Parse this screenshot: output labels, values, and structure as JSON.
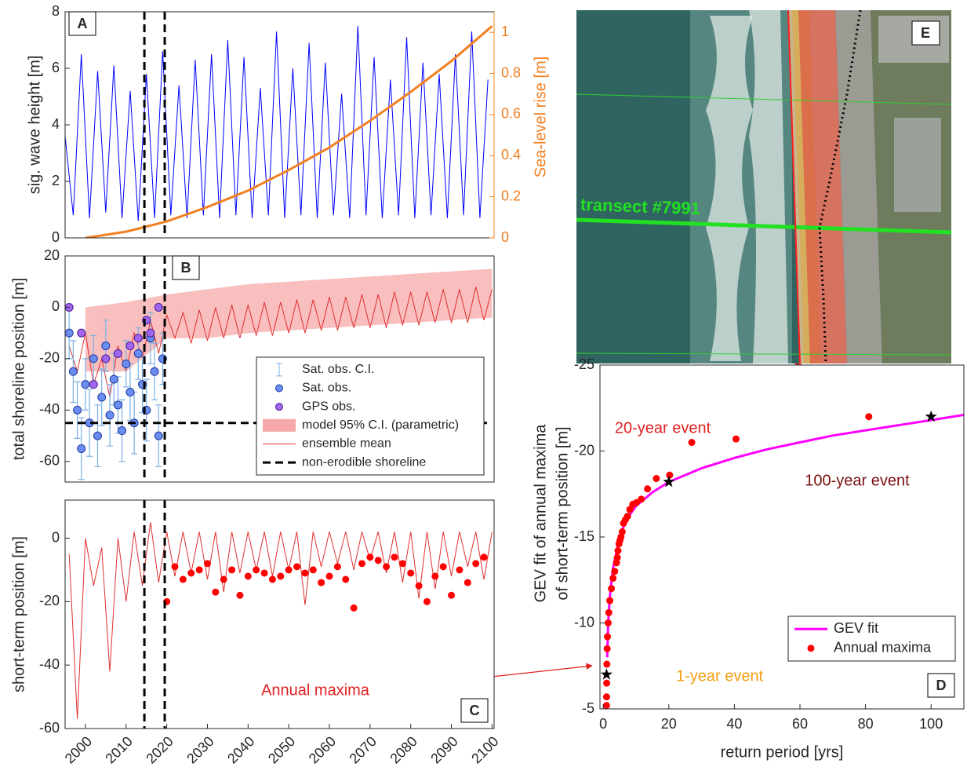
{
  "chart_data": [
    {
      "type": "line",
      "label": "A",
      "ylabel": "sig. wave height [m]",
      "y2label": "Sea-level rise [m]",
      "xlim": [
        1995,
        2100.5
      ],
      "ylim": [
        0,
        8
      ],
      "yticks": [
        0,
        2,
        4,
        6,
        8
      ],
      "y2lim": [
        0,
        1.1
      ],
      "y2ticks": [
        0,
        0.2,
        0.4,
        0.6,
        0.8,
        1
      ],
      "vlines": [
        2014.5,
        2019.5
      ],
      "series": [
        {
          "color": "#0000ff",
          "x": [
            1995,
            1997,
            1999,
            2001,
            2003,
            2005,
            2007,
            2009,
            2011,
            2013,
            2015,
            2017,
            2019,
            2021,
            2023,
            2025,
            2027,
            2029,
            2031,
            2033,
            2035,
            2037,
            2039,
            2041,
            2043,
            2045,
            2047,
            2049,
            2051,
            2053,
            2055,
            2057,
            2059,
            2061,
            2063,
            2065,
            2067,
            2069,
            2071,
            2073,
            2075,
            2077,
            2079,
            2081,
            2083,
            2085,
            2087,
            2089,
            2091,
            2093,
            2095,
            2097,
            2099
          ],
          "values": [
            3.6,
            0.8,
            6.5,
            0.7,
            5.9,
            0.9,
            6.1,
            0.7,
            5.2,
            0.6,
            5.8,
            0.7,
            6.6,
            0.8,
            5.4,
            0.7,
            6.3,
            0.8,
            6.5,
            0.7,
            7.0,
            0.8,
            6.4,
            0.7,
            5.3,
            0.8,
            7.3,
            0.7,
            6.0,
            0.8,
            6.9,
            0.7,
            6.2,
            0.8,
            5.1,
            0.7,
            7.5,
            0.8,
            6.4,
            0.7,
            5.6,
            0.8,
            7.1,
            0.7,
            6.2,
            0.8,
            5.8,
            0.7,
            6.5,
            0.8,
            7.3,
            0.7,
            5.6
          ]
        },
        {
          "color": "#f28021",
          "axis": "y2",
          "x": [
            2000,
            2010,
            2020,
            2030,
            2040,
            2050,
            2060,
            2070,
            2080,
            2090,
            2100
          ],
          "values": [
            0,
            0.03,
            0.08,
            0.15,
            0.23,
            0.33,
            0.44,
            0.57,
            0.71,
            0.86,
            1.03
          ]
        }
      ]
    },
    {
      "type": "scatter",
      "label": "B",
      "ylabel": "total shoreline position [m]",
      "xlim": [
        1995,
        2100.5
      ],
      "ylim": [
        -68,
        20
      ],
      "yticks": [
        -60,
        -40,
        -20,
        0,
        20
      ],
      "vlines": [
        2014.5,
        2019.5
      ],
      "legend": "lower right",
      "series": [
        {
          "name": "Sat. obs. C.I.",
          "kind": "errorbar",
          "color": "#7ab0e6",
          "errors": [
            10,
            12,
            11,
            12,
            10,
            13,
            9,
            12,
            11,
            10,
            12,
            10,
            11,
            12,
            9,
            11,
            12,
            10,
            11,
            12,
            10,
            11,
            12,
            10
          ]
        },
        {
          "name": "Sat. obs.",
          "kind": "points",
          "color": "#6b8cf0",
          "edgecolor": "#1f3a9e",
          "x": [
            1996,
            1997,
            1998,
            1999,
            2000,
            2001,
            2002,
            2003,
            2004,
            2005,
            2006,
            2007,
            2008,
            2009,
            2010,
            2011,
            2012,
            2013,
            2014,
            2015,
            2016,
            2017,
            2018,
            2019
          ],
          "values": [
            -10,
            -25,
            -40,
            -55,
            -30,
            -45,
            -20,
            -50,
            -35,
            -15,
            -42,
            -28,
            -38,
            -48,
            -22,
            -33,
            -45,
            -18,
            -30,
            -40,
            -12,
            -25,
            -50,
            -20
          ]
        },
        {
          "name": "GPS obs.",
          "kind": "points",
          "color": "#a066f0",
          "edgecolor": "#4b1d8f",
          "x": [
            1996,
            1999,
            2002,
            2005,
            2008,
            2011,
            2013,
            2015,
            2016,
            2018
          ],
          "values": [
            0,
            -10,
            -30,
            -20,
            -18,
            -15,
            -12,
            -5,
            -10,
            0
          ]
        },
        {
          "name": "model 95% C.I. (parametric)",
          "kind": "band",
          "color": "#f7a8a8",
          "x": [
            2000,
            2010,
            2020,
            2030,
            2040,
            2050,
            2060,
            2070,
            2080,
            2090,
            2100
          ],
          "lower": [
            -25,
            -25,
            -12,
            -12,
            -10,
            -9,
            -8,
            -7,
            -6,
            -5,
            -4
          ],
          "upper": [
            0,
            2,
            5,
            7,
            9,
            10,
            11,
            12,
            13,
            14,
            15
          ]
        },
        {
          "name": "ensemble mean",
          "kind": "line",
          "color": "#e03030",
          "x": [
            1996,
            1998,
            2000,
            2002,
            2004,
            2006,
            2008,
            2010,
            2012,
            2014,
            2016,
            2018,
            2020,
            2022,
            2024,
            2026,
            2028,
            2030,
            2032,
            2034,
            2036,
            2038,
            2040,
            2042,
            2044,
            2046,
            2048,
            2050,
            2052,
            2054,
            2056,
            2058,
            2060,
            2062,
            2064,
            2066,
            2068,
            2070,
            2072,
            2074,
            2076,
            2078,
            2080,
            2082,
            2084,
            2086,
            2088,
            2090,
            2092,
            2094,
            2096,
            2098,
            2100
          ],
          "values": [
            -15,
            -25,
            -10,
            -30,
            -20,
            -35,
            -15,
            -25,
            -10,
            -20,
            -5,
            -18,
            -3,
            -12,
            -2,
            -14,
            -1,
            -13,
            0,
            -12,
            1,
            -12,
            1,
            -11,
            2,
            -11,
            2,
            -10,
            3,
            -10,
            3,
            -9,
            4,
            -9,
            4,
            -8,
            5,
            -8,
            5,
            -8,
            6,
            -7,
            6,
            -7,
            6,
            -6,
            7,
            -6,
            7,
            -6,
            8,
            -5,
            7
          ]
        },
        {
          "name": "non-erodible shoreline",
          "kind": "hline",
          "color": "#000000",
          "value": -45
        }
      ]
    },
    {
      "type": "line",
      "label": "C",
      "ylabel": "short-term position [m]",
      "annotation": "Annual maxima",
      "xlim": [
        1995,
        2100.5
      ],
      "ylim": [
        -60,
        12
      ],
      "yticks": [
        -60,
        -40,
        -20,
        0
      ],
      "xticks": [
        2000,
        2010,
        2020,
        2030,
        2040,
        2050,
        2060,
        2070,
        2080,
        2090,
        2100
      ],
      "vlines": [
        2014.5,
        2019.5
      ],
      "series": [
        {
          "color": "#e03030",
          "x": [
            1996,
            1998,
            2000,
            2002,
            2004,
            2006,
            2008,
            2010,
            2012,
            2014,
            2016,
            2018,
            2020,
            2022,
            2024,
            2026,
            2028,
            2030,
            2032,
            2034,
            2036,
            2038,
            2040,
            2042,
            2044,
            2046,
            2048,
            2050,
            2052,
            2054,
            2056,
            2058,
            2060,
            2062,
            2064,
            2066,
            2068,
            2070,
            2072,
            2074,
            2076,
            2078,
            2080,
            2082,
            2084,
            2086,
            2088,
            2090,
            2092,
            2094,
            2096,
            2098,
            2100
          ],
          "values": [
            -5,
            -57,
            0,
            -15,
            -3,
            -42,
            0,
            -20,
            2,
            -15,
            5,
            -14,
            2,
            -12,
            2,
            -11,
            2,
            -13,
            2,
            -17,
            2,
            -11,
            2,
            -10,
            2,
            -12,
            2,
            -10,
            2,
            -21,
            2,
            -9,
            2,
            -8,
            2,
            -10,
            2,
            -7,
            2,
            -11,
            2,
            -14,
            2,
            -19,
            2,
            -16,
            2,
            -12,
            2,
            -9,
            2,
            -13,
            2
          ]
        },
        {
          "kind": "points",
          "color": "#ff0000",
          "x": [
            2020,
            2022,
            2024,
            2026,
            2028,
            2030,
            2032,
            2034,
            2036,
            2038,
            2040,
            2042,
            2044,
            2046,
            2048,
            2050,
            2052,
            2054,
            2056,
            2058,
            2060,
            2062,
            2064,
            2066,
            2068,
            2070,
            2072,
            2074,
            2076,
            2078,
            2080,
            2082,
            2084,
            2086,
            2088,
            2090,
            2092,
            2094,
            2096,
            2098
          ],
          "values": [
            -20,
            -9,
            -13,
            -11,
            -10,
            -8,
            -17,
            -13,
            -10,
            -18,
            -12,
            -10,
            -11,
            -13,
            -12,
            -10,
            -9,
            -11,
            -10,
            -14,
            -12,
            -9,
            -13,
            -22,
            -8,
            -6,
            -7,
            -9,
            -6,
            -8,
            -11,
            -15,
            -20,
            -12,
            -9,
            -18,
            -10,
            -14,
            -8,
            -6
          ]
        }
      ]
    },
    {
      "type": "scatter",
      "label": "D",
      "xlabel": "return period [yrs]",
      "ylabel": [
        "GEV fit of annual maxima",
        "of short-term position [m]"
      ],
      "xlim": [
        -1,
        110
      ],
      "ylim": [
        -5,
        -25
      ],
      "xticks": [
        0,
        20,
        40,
        60,
        80,
        100
      ],
      "yticks": [
        -5,
        -10,
        -15,
        -20,
        -25
      ],
      "legend": "lower right",
      "series": [
        {
          "name": "GEV fit",
          "kind": "line",
          "color": "#ff00ff",
          "x": [
            1.2,
            1.5,
            2,
            3,
            5,
            7,
            10,
            15,
            20,
            30,
            40,
            50,
            60,
            70,
            80,
            90,
            100,
            110
          ],
          "values": [
            -8,
            -10,
            -11.5,
            -13.2,
            -15,
            -16,
            -16.8,
            -17.6,
            -18.2,
            -19,
            -19.6,
            -20.1,
            -20.5,
            -20.9,
            -21.2,
            -21.5,
            -21.8,
            -22.1
          ]
        },
        {
          "name": "Annual maxima",
          "kind": "points",
          "color": "#ff0000",
          "x": [
            81,
            40.5,
            27,
            20.25,
            16.2,
            13.5,
            11.6,
            10.1,
            9,
            8.1,
            7.4,
            6.75,
            6.2,
            5.8,
            5.4,
            5.1,
            4.8,
            4.5,
            4.3,
            4.05,
            3.5,
            3.0,
            2.5,
            2.0,
            1.7,
            1.5,
            1.3,
            1.2,
            1.1,
            1.05,
            1.02,
            1.0
          ],
          "values": [
            -22,
            -20.7,
            -20.5,
            -18.6,
            -18.4,
            -17.8,
            -17.2,
            -17.0,
            -16.9,
            -16.6,
            -16.2,
            -16.0,
            -15.8,
            -15.3,
            -15.0,
            -14.8,
            -14.6,
            -14.2,
            -13.8,
            -13.5,
            -13.0,
            -12.6,
            -12.0,
            -11.3,
            -10.6,
            -10.0,
            -9.2,
            -8.5,
            -7.6,
            -6.5,
            -5.7,
            -5.2
          ]
        }
      ],
      "events": [
        {
          "label": "1-year event",
          "x": 1,
          "y": -7,
          "color": "#f39c12"
        },
        {
          "label": "20-year event",
          "x": 20,
          "y": -18.2,
          "color": "#e02020"
        },
        {
          "label": "100-year event",
          "x": 100,
          "y": -22,
          "color": "#7a1010"
        }
      ]
    }
  ],
  "image_panel": {
    "label": "E",
    "transect": "transect #7991"
  }
}
